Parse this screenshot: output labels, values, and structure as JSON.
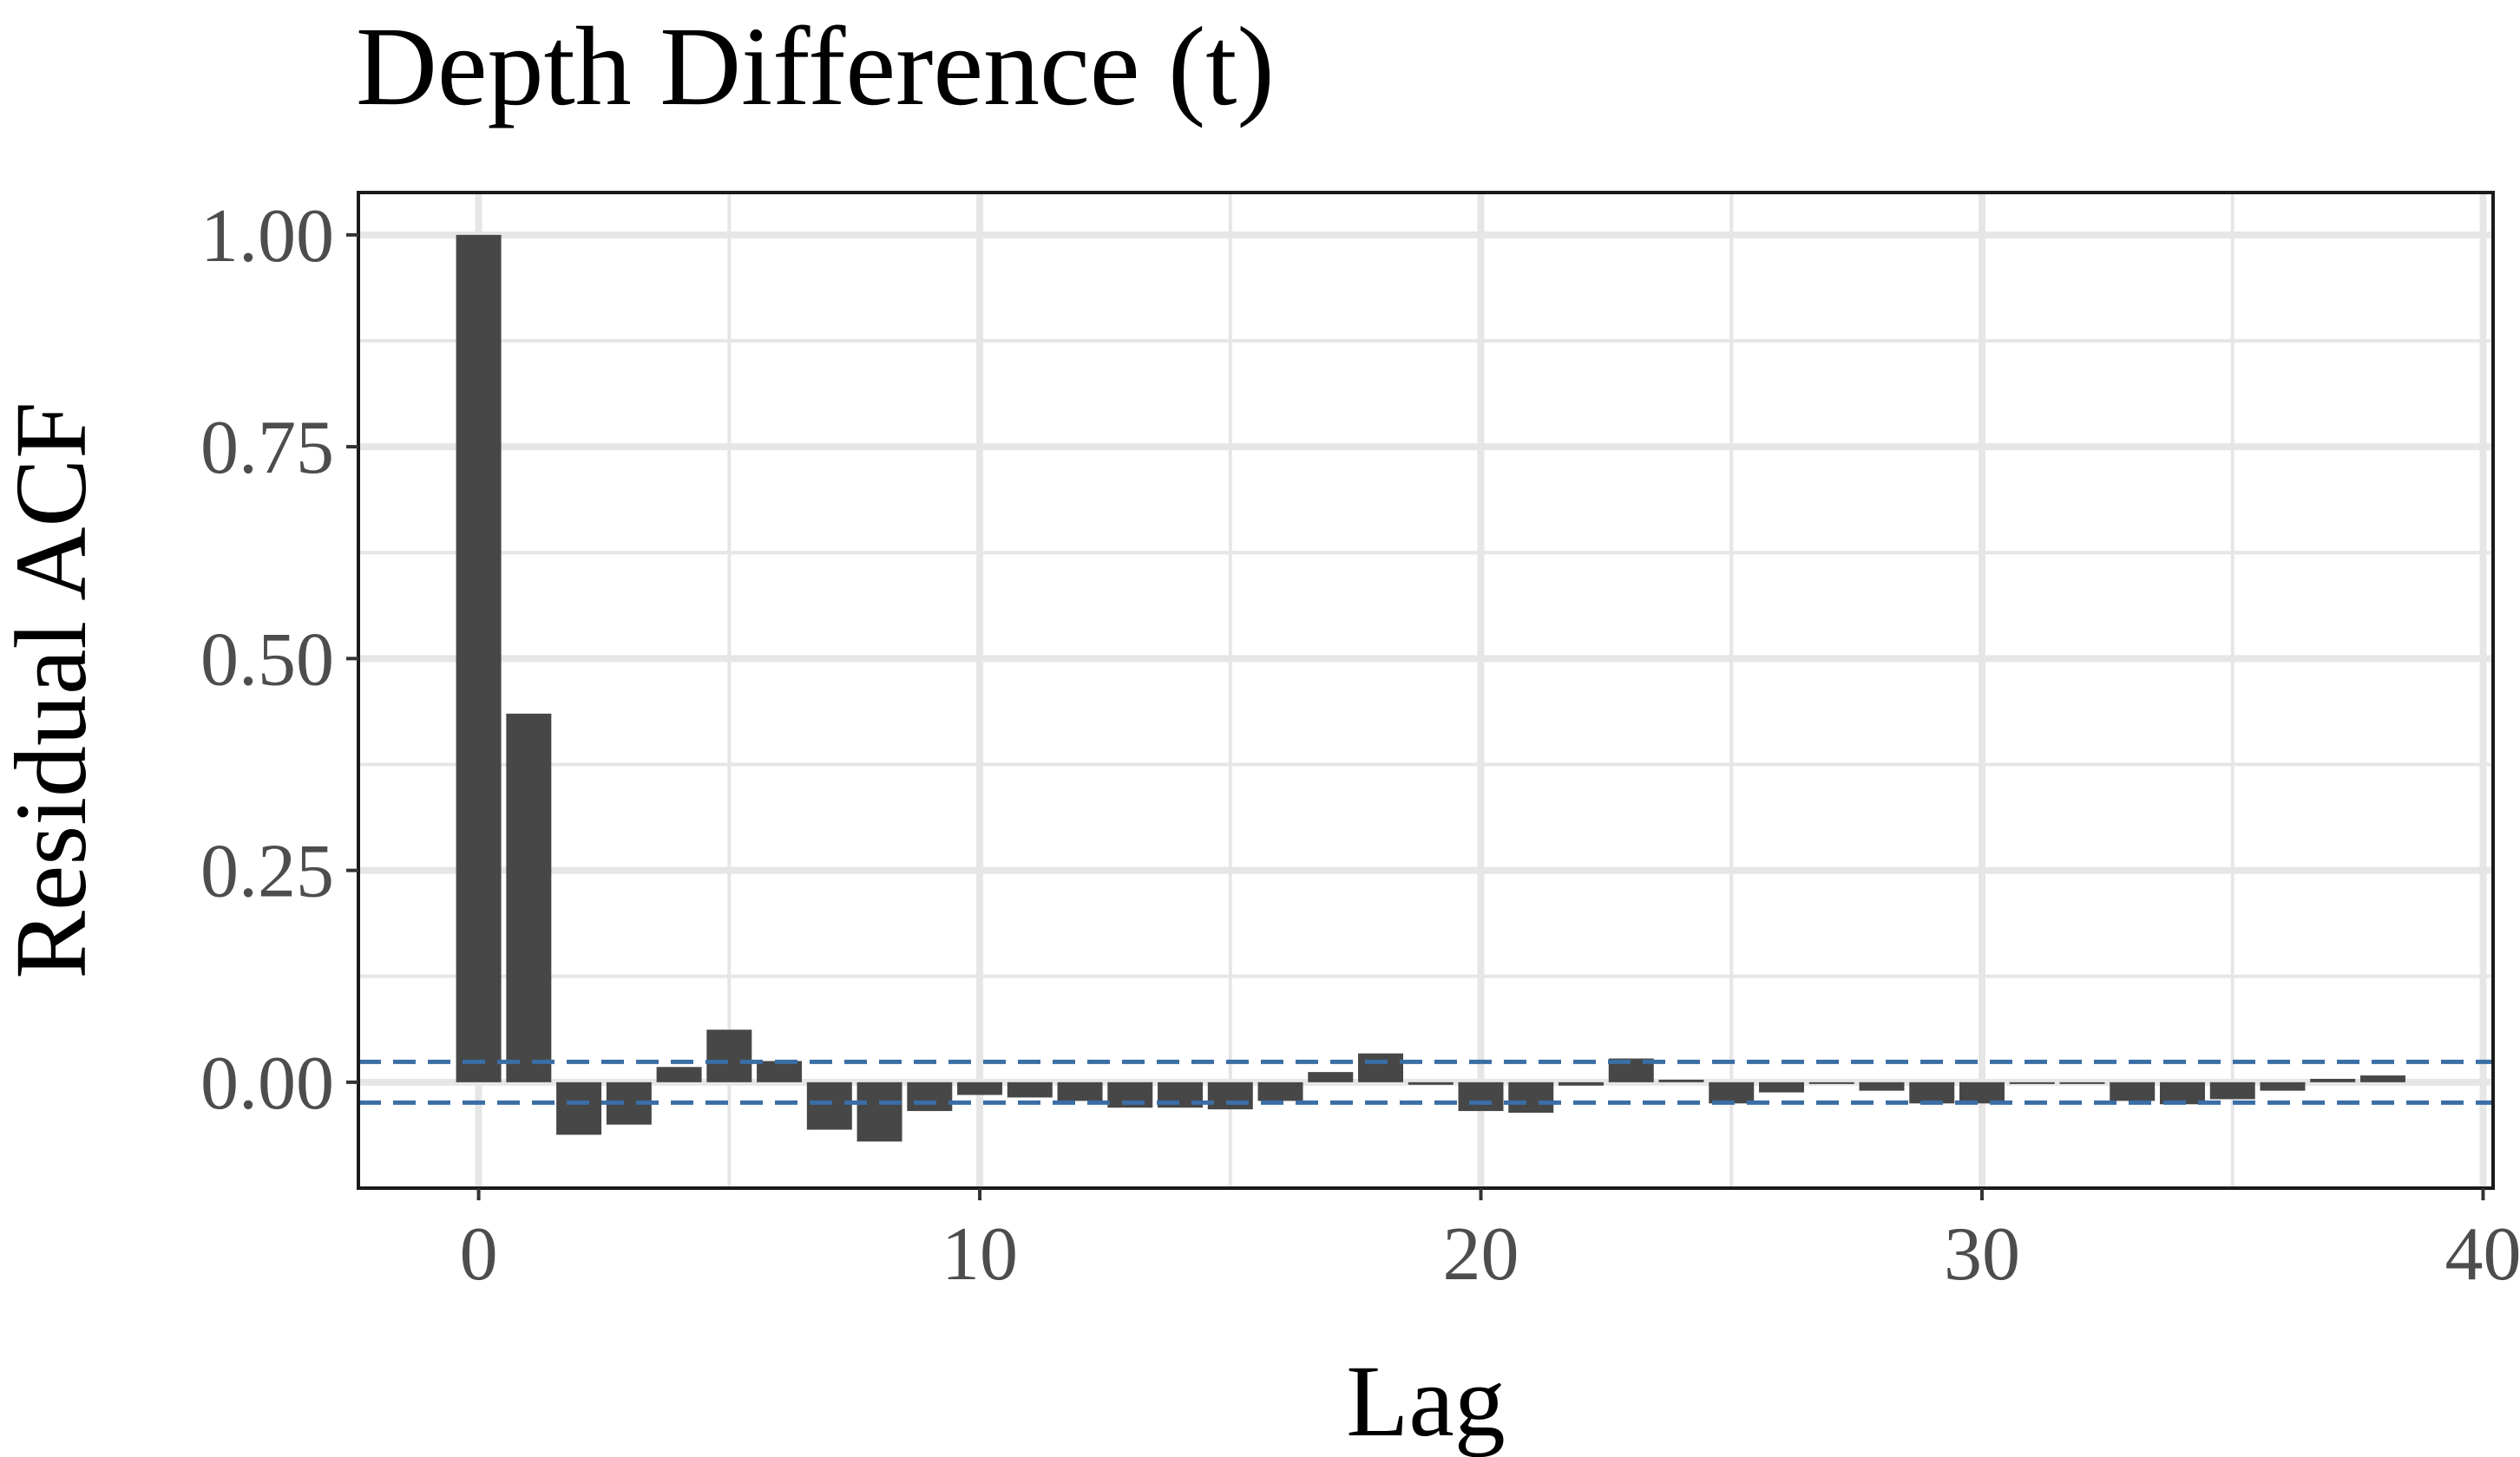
{
  "chart_data": {
    "type": "bar",
    "title": "Depth Difference (t)",
    "xlabel": "Lag",
    "ylabel": "Residual ACF",
    "xlim": [
      -2.4,
      40.2
    ],
    "ylim": [
      -0.125,
      1.05
    ],
    "x_ticks": [
      0,
      10,
      20,
      30,
      40
    ],
    "x_tick_labels": [
      "0",
      "10",
      "20",
      "30",
      "40"
    ],
    "y_ticks": [
      0,
      0.25,
      0.5,
      0.75,
      1
    ],
    "y_tick_labels": [
      "0.00",
      "0.25",
      "0.50",
      "0.75",
      "1.00"
    ],
    "grid": true,
    "legend": "none",
    "confidence_bound": 0.024,
    "colors": {
      "bar": "#474747",
      "confidence": "#3a6ea5",
      "grid": "#e6e6e6",
      "panel_border": "#1a1a1a"
    },
    "series": [
      {
        "lags": [
          0,
          1,
          2,
          3,
          4,
          5,
          6,
          7,
          8,
          9,
          10,
          11,
          12,
          13,
          14,
          15,
          16,
          17,
          18,
          19,
          20,
          21,
          22,
          23,
          24,
          25,
          26,
          27,
          28,
          29,
          30,
          31,
          32,
          33,
          34,
          35,
          36,
          37,
          38
        ],
        "values": [
          1.0,
          0.435,
          -0.062,
          -0.05,
          0.018,
          0.062,
          0.025,
          -0.056,
          -0.07,
          -0.034,
          -0.015,
          -0.018,
          -0.022,
          -0.03,
          -0.03,
          -0.032,
          -0.022,
          0.012,
          0.034,
          -0.003,
          -0.034,
          -0.036,
          -0.004,
          0.028,
          0.003,
          -0.025,
          -0.012,
          -0.002,
          -0.01,
          -0.025,
          -0.025,
          -0.002,
          -0.002,
          -0.022,
          -0.026,
          -0.02,
          -0.01,
          0.004,
          0.008
        ]
      }
    ]
  }
}
